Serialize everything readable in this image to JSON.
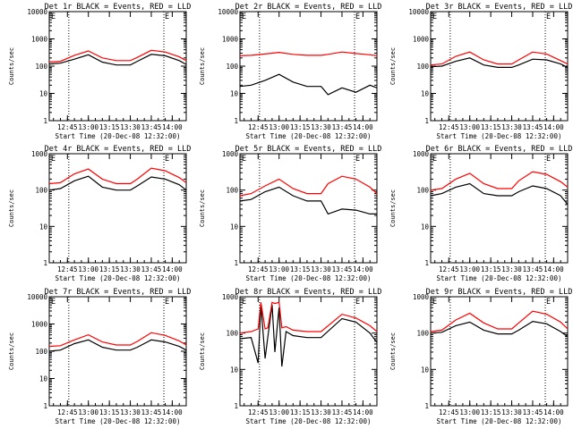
{
  "colors": {
    "events": "#000000",
    "lld": "#ff0000",
    "frame": "#000000",
    "background": "#ffffff"
  },
  "chart_data": [
    {
      "type": "line",
      "title": "Det 1r BLACK = Events, RED = LLD",
      "xlabel": "Start Time (20-Dec-08 12:32:00)",
      "ylabel": "Counts/sec",
      "ylog": true,
      "ylim": [
        1,
        10000
      ],
      "y_ticks": [
        "1",
        "10",
        "100",
        "1000",
        "10000"
      ],
      "x_ticks": [
        "12:45",
        "13:00",
        "13:15",
        "13:30",
        "13:45",
        "14:00"
      ],
      "vlines": [
        "12:46",
        "13:54"
      ],
      "e_marker": "E",
      "x": [
        "12:32",
        "12:40",
        "12:50",
        "13:00",
        "13:10",
        "13:20",
        "13:30",
        "13:35",
        "13:45",
        "13:55",
        "14:05",
        "14:10"
      ],
      "series": [
        {
          "name": "Events",
          "values": [
            120,
            128,
            180,
            260,
            140,
            110,
            110,
            150,
            270,
            240,
            160,
            115
          ]
        },
        {
          "name": "LLD",
          "values": [
            140,
            150,
            250,
            360,
            200,
            160,
            160,
            210,
            380,
            330,
            220,
            160
          ]
        }
      ]
    },
    {
      "type": "line",
      "title": "Det 2r BLACK = Events, RED = LLD",
      "xlabel": "Start Time (20-Dec-08 12:32:00)",
      "ylabel": "Counts/sec",
      "ylog": true,
      "ylim": [
        1,
        10000
      ],
      "y_ticks": [
        "1",
        "10",
        "100",
        "1000",
        "10000"
      ],
      "x_ticks": [
        "12:45",
        "13:00",
        "13:15",
        "13:30",
        "13:45",
        "14:00"
      ],
      "vlines": [
        "12:46",
        "13:54"
      ],
      "e_marker": "E",
      "x": [
        "12:32",
        "12:40",
        "12:50",
        "13:00",
        "13:10",
        "13:20",
        "13:30",
        "13:35",
        "13:45",
        "13:55",
        "14:05",
        "14:10"
      ],
      "series": [
        {
          "name": "Events",
          "values": [
            18,
            20,
            30,
            50,
            26,
            18,
            18,
            9,
            16,
            11,
            20,
            16
          ]
        },
        {
          "name": "LLD",
          "values": [
            240,
            250,
            280,
            320,
            270,
            250,
            250,
            270,
            330,
            290,
            260,
            240
          ]
        }
      ]
    },
    {
      "type": "line",
      "title": "Det 3r BLACK = Events, RED = LLD",
      "xlabel": "Start Time (20-Dec-08 12:32:00)",
      "ylabel": "Counts/sec",
      "ylog": true,
      "ylim": [
        1,
        10000
      ],
      "y_ticks": [
        "1",
        "10",
        "100",
        "1000",
        "10000"
      ],
      "x_ticks": [
        "12:45",
        "13:00",
        "13:15",
        "13:30",
        "13:45",
        "14:00"
      ],
      "vlines": [
        "12:46",
        "13:54"
      ],
      "e_marker": "E",
      "x": [
        "12:32",
        "12:40",
        "12:50",
        "13:00",
        "13:10",
        "13:20",
        "13:30",
        "13:35",
        "13:45",
        "13:55",
        "14:05",
        "14:10"
      ],
      "series": [
        {
          "name": "Events",
          "values": [
            95,
            100,
            150,
            200,
            110,
            90,
            90,
            110,
            180,
            170,
            120,
            90
          ]
        },
        {
          "name": "LLD",
          "values": [
            110,
            120,
            230,
            330,
            170,
            120,
            120,
            170,
            330,
            280,
            160,
            120
          ]
        }
      ]
    },
    {
      "type": "line",
      "title": "Det 4r BLACK = Events, RED = LLD",
      "xlabel": "Start Time (20-Dec-08 12:32:00)",
      "ylabel": "Counts/sec",
      "ylog": true,
      "ylim": [
        1,
        1000
      ],
      "y_ticks": [
        "1",
        "10",
        "100",
        "1000"
      ],
      "x_ticks": [
        "12:45",
        "13:00",
        "13:15",
        "13:30",
        "13:45",
        "14:00"
      ],
      "vlines": [
        "12:46",
        "13:54"
      ],
      "e_marker": "E",
      "x": [
        "12:32",
        "12:40",
        "12:50",
        "13:00",
        "13:10",
        "13:20",
        "13:30",
        "13:35",
        "13:45",
        "13:55",
        "14:05",
        "14:10"
      ],
      "series": [
        {
          "name": "Events",
          "values": [
            100,
            110,
            180,
            240,
            120,
            100,
            100,
            130,
            230,
            200,
            140,
            100
          ]
        },
        {
          "name": "LLD",
          "values": [
            150,
            160,
            280,
            380,
            200,
            150,
            150,
            200,
            400,
            340,
            220,
            160
          ]
        }
      ]
    },
    {
      "type": "line",
      "title": "Det 5r BLACK = Events, RED = LLD",
      "xlabel": "Start Time (20-Dec-08 12:32:00)",
      "ylabel": "Counts/sec",
      "ylog": true,
      "ylim": [
        1,
        1000
      ],
      "y_ticks": [
        "1",
        "10",
        "100",
        "1000"
      ],
      "x_ticks": [
        "12:45",
        "13:00",
        "13:15",
        "13:30",
        "13:45",
        "14:00"
      ],
      "vlines": [
        "12:46",
        "13:54"
      ],
      "e_marker": "E",
      "x": [
        "12:32",
        "12:40",
        "12:50",
        "13:00",
        "13:10",
        "13:20",
        "13:30",
        "13:35",
        "13:45",
        "13:55",
        "14:05",
        "14:10"
      ],
      "series": [
        {
          "name": "Events",
          "values": [
            50,
            55,
            90,
            120,
            70,
            50,
            50,
            22,
            30,
            28,
            22,
            22
          ]
        },
        {
          "name": "LLD",
          "values": [
            70,
            80,
            130,
            200,
            110,
            80,
            80,
            150,
            240,
            200,
            120,
            80
          ]
        }
      ]
    },
    {
      "type": "line",
      "title": "Det 6r BLACK = Events, RED = LLD",
      "xlabel": "Start Time (20-Dec-08 12:32:00)",
      "ylabel": "Counts/sec",
      "ylog": true,
      "ylim": [
        1,
        1000
      ],
      "y_ticks": [
        "1",
        "10",
        "100",
        "1000"
      ],
      "x_ticks": [
        "12:45",
        "13:00",
        "13:15",
        "13:30",
        "13:45",
        "14:00"
      ],
      "vlines": [
        "12:46",
        "13:54"
      ],
      "e_marker": "E",
      "x": [
        "12:32",
        "12:40",
        "12:50",
        "13:00",
        "13:10",
        "13:20",
        "13:30",
        "13:35",
        "13:45",
        "13:55",
        "14:05",
        "14:10"
      ],
      "series": [
        {
          "name": "Events",
          "values": [
            70,
            80,
            120,
            150,
            80,
            70,
            70,
            90,
            130,
            110,
            70,
            40
          ]
        },
        {
          "name": "LLD",
          "values": [
            100,
            110,
            200,
            290,
            150,
            110,
            110,
            180,
            320,
            270,
            170,
            120
          ]
        }
      ]
    },
    {
      "type": "line",
      "title": "Det 7r BLACK = Events, RED = LLD",
      "xlabel": "Start Time (20-Dec-08 12:32:00)",
      "ylabel": "Counts/sec",
      "ylog": true,
      "ylim": [
        1,
        10000
      ],
      "y_ticks": [
        "1",
        "10",
        "100",
        "1000",
        "10000"
      ],
      "x_ticks": [
        "12:45",
        "13:00",
        "13:15",
        "13:30",
        "13:45",
        "14:00"
      ],
      "vlines": [
        "12:46",
        "13:54"
      ],
      "e_marker": "E",
      "x": [
        "12:32",
        "12:40",
        "12:50",
        "13:00",
        "13:10",
        "13:20",
        "13:30",
        "13:35",
        "13:45",
        "13:55",
        "14:05",
        "14:10"
      ],
      "series": [
        {
          "name": "Events",
          "values": [
            100,
            110,
            190,
            260,
            140,
            110,
            110,
            140,
            260,
            220,
            150,
            110
          ]
        },
        {
          "name": "LLD",
          "values": [
            150,
            160,
            260,
            400,
            220,
            170,
            170,
            230,
            480,
            380,
            240,
            170
          ]
        }
      ]
    },
    {
      "type": "line",
      "title": "Det 8r BLACK = Events, RED = LLD",
      "xlabel": "Start Time (20-Dec-08 12:32:00)",
      "ylabel": "Counts/sec",
      "ylog": true,
      "ylim": [
        1,
        1000
      ],
      "y_ticks": [
        "1",
        "10",
        "100",
        "1000"
      ],
      "x_ticks": [
        "12:45",
        "13:00",
        "13:15",
        "13:30",
        "13:45",
        "14:00"
      ],
      "vlines": [
        "12:46",
        "13:54"
      ],
      "e_marker": "E",
      "x": [
        "12:32",
        "12:40",
        "12:45",
        "12:47",
        "12:50",
        "12:52",
        "12:55",
        "12:57",
        "13:00",
        "13:02",
        "13:05",
        "13:10",
        "13:20",
        "13:30",
        "13:45",
        "13:55",
        "14:05",
        "14:10"
      ],
      "series": [
        {
          "name": "Events",
          "values": [
            70,
            75,
            15,
            600,
            20,
            80,
            600,
            30,
            500,
            12,
            110,
            85,
            75,
            75,
            250,
            200,
            100,
            55
          ]
        },
        {
          "name": "LLD",
          "values": [
            100,
            110,
            130,
            700,
            130,
            140,
            700,
            650,
            700,
            140,
            150,
            120,
            110,
            110,
            330,
            260,
            160,
            110
          ]
        }
      ]
    },
    {
      "type": "line",
      "title": "Det 9r BLACK = Events, RED = LLD",
      "xlabel": "Start Time (20-Dec-08 12:32:00)",
      "ylabel": "Counts/sec",
      "ylog": true,
      "ylim": [
        1,
        1000
      ],
      "y_ticks": [
        "1",
        "10",
        "100",
        "1000"
      ],
      "x_ticks": [
        "12:45",
        "13:00",
        "13:15",
        "13:30",
        "13:45",
        "14:00"
      ],
      "vlines": [
        "12:46",
        "13:54"
      ],
      "e_marker": "E",
      "x": [
        "12:32",
        "12:40",
        "12:50",
        "13:00",
        "13:10",
        "13:20",
        "13:30",
        "13:35",
        "13:45",
        "13:55",
        "14:05",
        "14:10"
      ],
      "series": [
        {
          "name": "Events",
          "values": [
            100,
            105,
            160,
            200,
            120,
            95,
            95,
            120,
            210,
            180,
            110,
            80
          ]
        },
        {
          "name": "LLD",
          "values": [
            110,
            120,
            230,
            350,
            190,
            130,
            130,
            190,
            400,
            330,
            200,
            130
          ]
        }
      ]
    }
  ]
}
